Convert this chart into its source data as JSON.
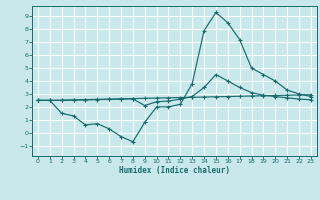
{
  "xlabel": "Humidex (Indice chaleur)",
  "background_color": "#c8e8ec",
  "grid_color": "#ffffff",
  "line_color": "#1a6b6b",
  "xlim": [
    -0.5,
    23.5
  ],
  "ylim": [
    -1.8,
    9.8
  ],
  "xticks": [
    0,
    1,
    2,
    3,
    4,
    5,
    6,
    7,
    8,
    9,
    10,
    11,
    12,
    13,
    14,
    15,
    16,
    17,
    18,
    19,
    20,
    21,
    22,
    23
  ],
  "yticks": [
    -1,
    0,
    1,
    2,
    3,
    4,
    5,
    6,
    7,
    8,
    9
  ],
  "s1_x": [
    0,
    1,
    2,
    3,
    4,
    5,
    6,
    7,
    8,
    9,
    10,
    11,
    12,
    13,
    14,
    15,
    16,
    17,
    18,
    19,
    20,
    21,
    22,
    23
  ],
  "s1_y": [
    2.5,
    2.5,
    2.52,
    2.54,
    2.56,
    2.58,
    2.6,
    2.62,
    2.64,
    2.66,
    2.68,
    2.7,
    2.72,
    2.74,
    2.76,
    2.78,
    2.8,
    2.82,
    2.84,
    2.86,
    2.88,
    2.9,
    2.92,
    2.94
  ],
  "s2_x": [
    0,
    1,
    2,
    3,
    4,
    5,
    6,
    7,
    8,
    9,
    10,
    11,
    12,
    13,
    14,
    15,
    16,
    17,
    18,
    19,
    20,
    21,
    22,
    23
  ],
  "s2_y": [
    2.5,
    2.5,
    2.5,
    2.52,
    2.54,
    2.56,
    2.58,
    2.6,
    2.62,
    2.1,
    2.4,
    2.45,
    2.6,
    2.8,
    3.5,
    4.5,
    4.0,
    3.5,
    3.1,
    2.9,
    2.8,
    2.7,
    2.6,
    2.55
  ],
  "s3_x": [
    0,
    1,
    2,
    3,
    4,
    5,
    6,
    7,
    8,
    9,
    10,
    11,
    12,
    13,
    14,
    15,
    16,
    17,
    18,
    19,
    20,
    21,
    22,
    23
  ],
  "s3_y": [
    2.5,
    2.5,
    1.5,
    1.3,
    0.6,
    0.7,
    0.3,
    -0.3,
    -0.7,
    0.8,
    2.0,
    2.0,
    2.2,
    3.8,
    7.9,
    9.3,
    8.5,
    7.2,
    5.0,
    4.5,
    4.0,
    3.3,
    3.0,
    2.8
  ]
}
